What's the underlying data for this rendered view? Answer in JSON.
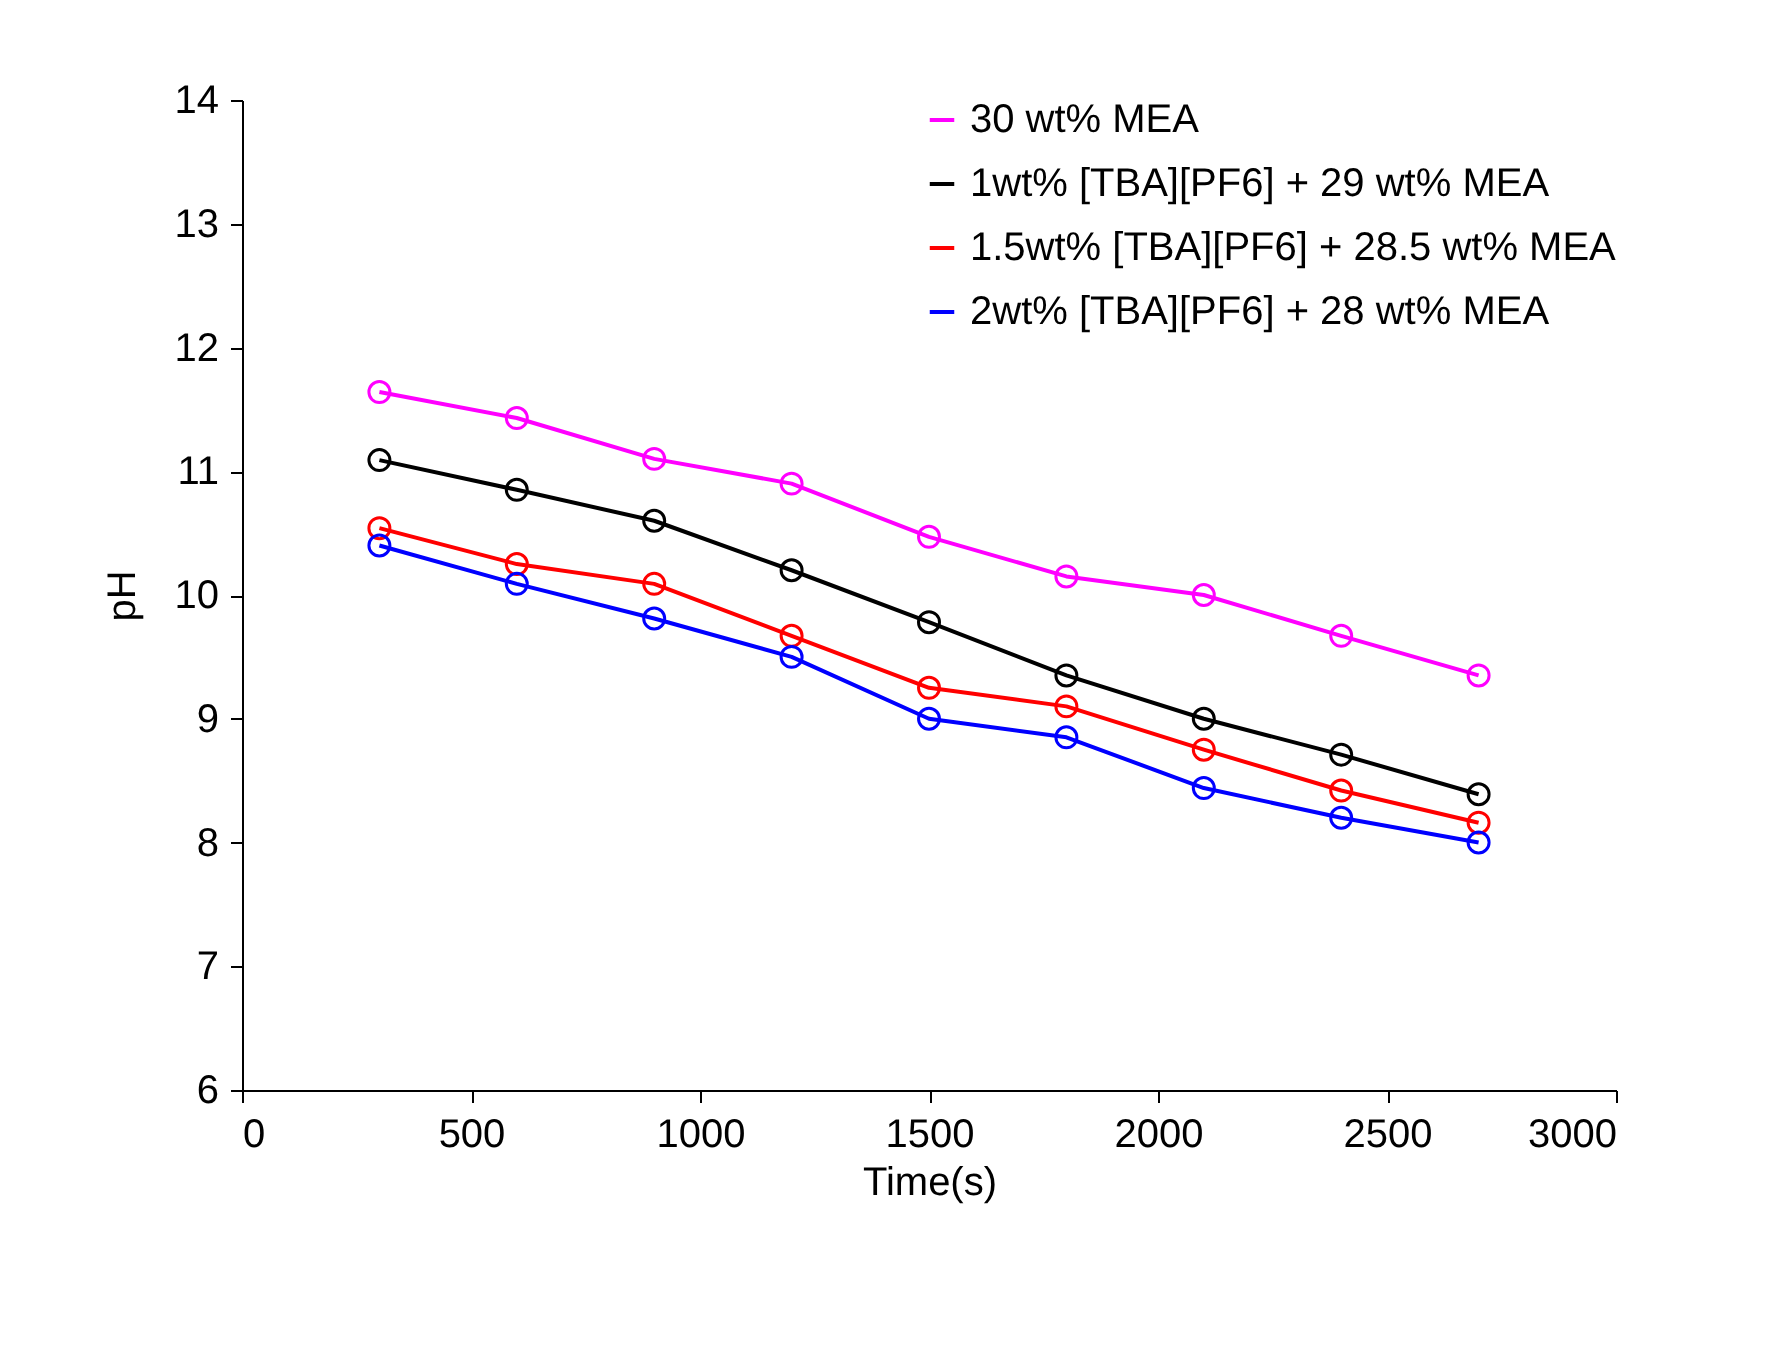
{
  "chart_data": {
    "type": "line",
    "xlabel": "Time(s)",
    "ylabel": "pH",
    "x": [
      300,
      600,
      900,
      1200,
      1500,
      1800,
      2100,
      2400,
      2700
    ],
    "series": [
      {
        "name": "30 wt% MEA",
        "color": "#ff00ff",
        "values": [
          11.64,
          11.43,
          11.1,
          10.9,
          10.47,
          10.15,
          10.0,
          9.67,
          9.35
        ]
      },
      {
        "name": "1wt% [TBA][PF6] + 29 wt% MEA",
        "color": "#000000",
        "values": [
          11.09,
          10.85,
          10.6,
          10.2,
          9.78,
          9.35,
          9.0,
          8.71,
          8.39
        ]
      },
      {
        "name": "1.5wt% [TBA][PF6] + 28.5 wt% MEA",
        "color": "#ff0000",
        "values": [
          10.54,
          10.25,
          10.09,
          9.67,
          9.25,
          9.1,
          8.75,
          8.42,
          8.16
        ]
      },
      {
        "name": "2wt% [TBA][PF6] + 28 wt% MEA",
        "color": "#0000ff",
        "values": [
          10.4,
          10.09,
          9.81,
          9.5,
          9.0,
          8.85,
          8.44,
          8.2,
          8.0
        ]
      }
    ],
    "xlim": [
      0,
      3000
    ],
    "xticks": [
      0,
      500,
      1000,
      1500,
      2000,
      2500,
      3000
    ],
    "ylim": [
      6,
      14
    ],
    "yticks": [
      6,
      7,
      8,
      9,
      10,
      11,
      12,
      13,
      14
    ],
    "grid": false,
    "legend": "top right",
    "marker": "circle",
    "line_style": "solid"
  }
}
